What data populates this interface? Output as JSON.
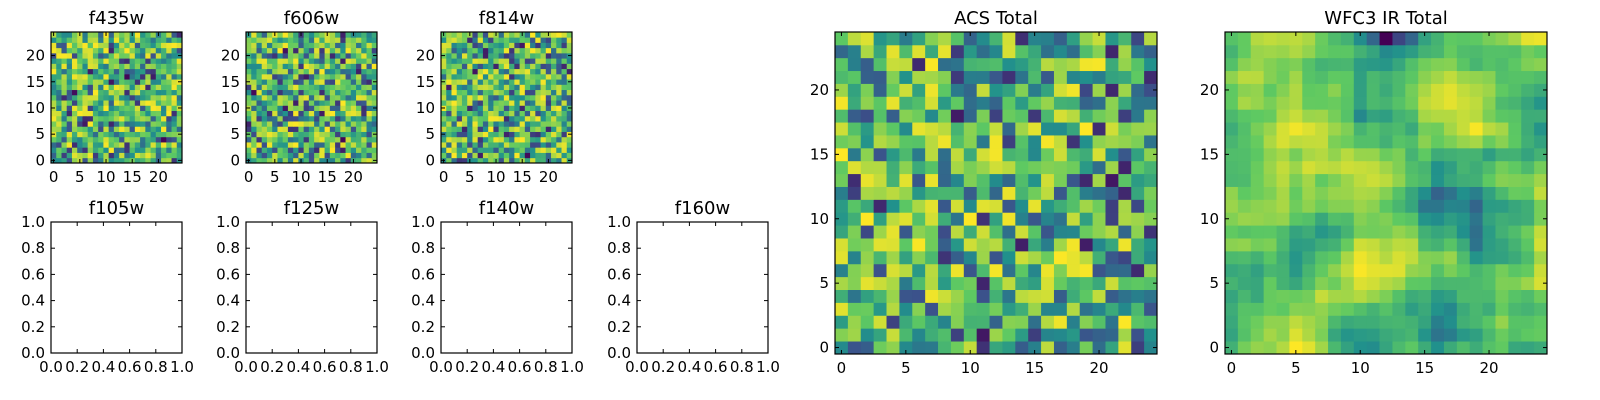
{
  "chart_data": [
    {
      "type": "heatmap",
      "title": "f435w",
      "xticks": [
        "0",
        "5",
        "10",
        "15",
        "20"
      ],
      "yticks": [
        "0",
        "5",
        "10",
        "15",
        "20"
      ],
      "grid_size": 25,
      "value_range": [
        0,
        1
      ],
      "seed": 11
    },
    {
      "type": "heatmap",
      "title": "f606w",
      "xticks": [
        "0",
        "5",
        "10",
        "15",
        "20"
      ],
      "yticks": [
        "0",
        "5",
        "10",
        "15",
        "20"
      ],
      "grid_size": 25,
      "value_range": [
        0,
        1
      ],
      "seed": 23
    },
    {
      "type": "heatmap",
      "title": "f814w",
      "xticks": [
        "0",
        "5",
        "10",
        "15",
        "20"
      ],
      "yticks": [
        "0",
        "5",
        "10",
        "15",
        "20"
      ],
      "grid_size": 25,
      "value_range": [
        0,
        1
      ],
      "seed": 37
    },
    {
      "type": "empty",
      "title": "f105w",
      "xticks": [
        "0.0",
        "0.2",
        "0.4",
        "0.6",
        "0.8",
        "1.0"
      ],
      "yticks": [
        "0.0",
        "0.2",
        "0.4",
        "0.6",
        "0.8",
        "1.0"
      ],
      "xlim": [
        0,
        1
      ],
      "ylim": [
        0,
        1
      ]
    },
    {
      "type": "empty",
      "title": "f125w",
      "xticks": [
        "0.0",
        "0.2",
        "0.4",
        "0.6",
        "0.8",
        "1.0"
      ],
      "yticks": [
        "0.0",
        "0.2",
        "0.4",
        "0.6",
        "0.8",
        "1.0"
      ],
      "xlim": [
        0,
        1
      ],
      "ylim": [
        0,
        1
      ]
    },
    {
      "type": "empty",
      "title": "f140w",
      "xticks": [
        "0.0",
        "0.2",
        "0.4",
        "0.6",
        "0.8",
        "1.0"
      ],
      "yticks": [
        "0.0",
        "0.2",
        "0.4",
        "0.6",
        "0.8",
        "1.0"
      ],
      "xlim": [
        0,
        1
      ],
      "ylim": [
        0,
        1
      ]
    },
    {
      "type": "empty",
      "title": "f160w",
      "xticks": [
        "0.0",
        "0.2",
        "0.4",
        "0.6",
        "0.8",
        "1.0"
      ],
      "yticks": [
        "0.0",
        "0.2",
        "0.4",
        "0.6",
        "0.8",
        "1.0"
      ],
      "xlim": [
        0,
        1
      ],
      "ylim": [
        0,
        1
      ]
    },
    {
      "type": "heatmap",
      "title": "ACS Total",
      "xticks": [
        "0",
        "5",
        "10",
        "15",
        "20"
      ],
      "yticks": [
        "0",
        "5",
        "10",
        "15",
        "20"
      ],
      "grid_size": 25,
      "value_range": [
        0,
        1
      ],
      "seed": 53
    },
    {
      "type": "heatmap",
      "title": "WFC3 IR Total",
      "xticks": [
        "0",
        "5",
        "10",
        "15",
        "20"
      ],
      "yticks": [
        "0",
        "5",
        "10",
        "15",
        "20"
      ],
      "grid_size": 25,
      "value_range": [
        0,
        1
      ],
      "seed": 71,
      "smooth": true
    }
  ],
  "colormap": [
    "#440154",
    "#3b528b",
    "#21918c",
    "#5ec962",
    "#fde725"
  ],
  "colors": {
    "axis": "#000000",
    "background": "#ffffff"
  }
}
